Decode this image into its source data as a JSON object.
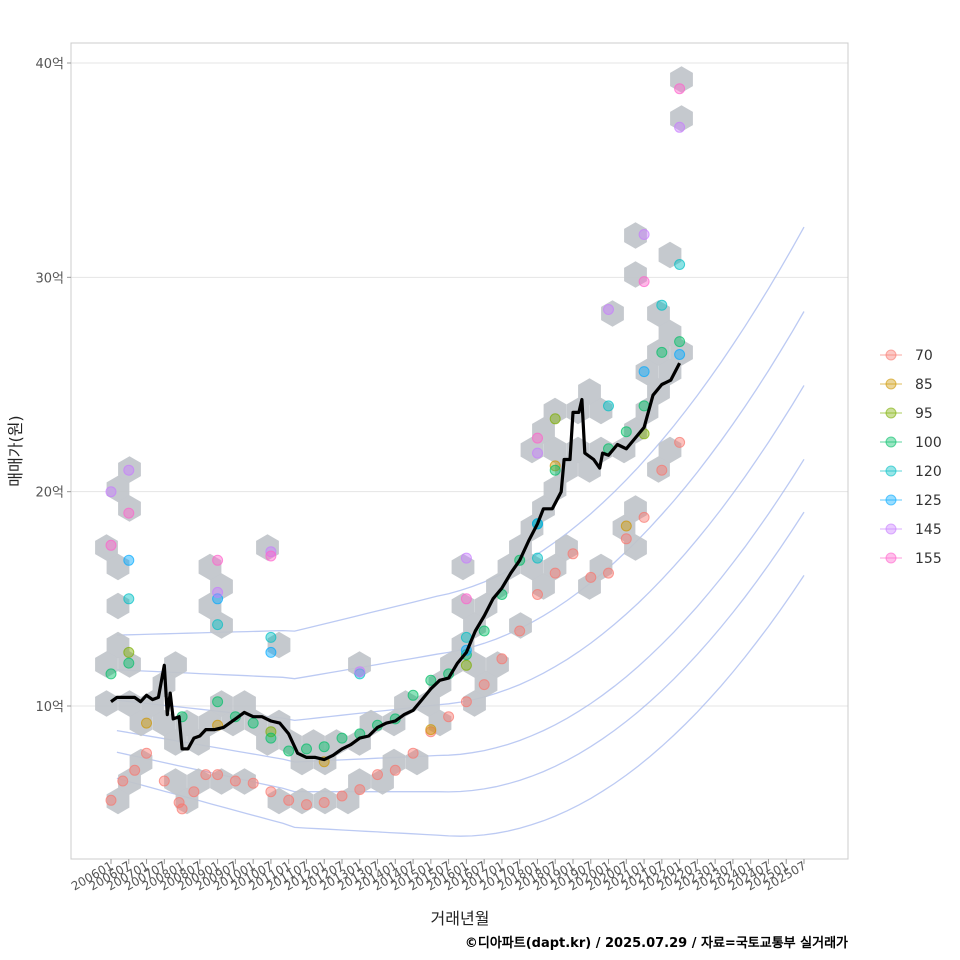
{
  "chart_data": {
    "type": "scatter",
    "title": "",
    "xlabel": "거래년월",
    "ylabel": "매매가(원)",
    "caption": "©디아파트(dapt.kr) / 2025.07.29 / 자료=국토교통부 실거래가",
    "x_ticks": [
      "200601",
      "200607",
      "200701",
      "200707",
      "200801",
      "200807",
      "200901",
      "200907",
      "201001",
      "201007",
      "201101",
      "201107",
      "201201",
      "201207",
      "201301",
      "201307",
      "201401",
      "201407",
      "201501",
      "201507",
      "201601",
      "201607",
      "201701",
      "201707",
      "201801",
      "201807",
      "201901",
      "201907",
      "202001",
      "202007",
      "202101",
      "202107",
      "202201",
      "202207",
      "202301",
      "202307",
      "202401",
      "202407",
      "202501",
      "202507"
    ],
    "y_ticks": [
      {
        "value": 10,
        "label": "10억"
      },
      {
        "value": 20,
        "label": "20억"
      },
      {
        "value": 30,
        "label": "30억"
      },
      {
        "value": 40,
        "label": "40억"
      }
    ],
    "xlim_months": [
      0,
      240
    ],
    "ylim": [
      3,
      41.5
    ],
    "grid": true,
    "legend_position": "right",
    "legend": [
      {
        "label": "70",
        "color": "#F8766D"
      },
      {
        "label": "85",
        "color": "#CD9600"
      },
      {
        "label": "95",
        "color": "#7CAE00"
      },
      {
        "label": "100",
        "color": "#00BE67"
      },
      {
        "label": "120",
        "color": "#00BFC4"
      },
      {
        "label": "125",
        "color": "#00A9FF"
      },
      {
        "label": "145",
        "color": "#C77CFF"
      },
      {
        "label": "155",
        "color": "#FF61CC"
      }
    ],
    "median_line": {
      "color": "#000000",
      "points": [
        [
          "200601",
          10.2
        ],
        [
          "200603",
          10.4
        ],
        [
          "200609",
          10.4
        ],
        [
          "200611",
          10.2
        ],
        [
          "200701",
          10.5
        ],
        [
          "200703",
          10.3
        ],
        [
          "200705",
          10.4
        ],
        [
          "200707",
          11.9
        ],
        [
          "200708",
          9.6
        ],
        [
          "200709",
          10.6
        ],
        [
          "200710",
          9.4
        ],
        [
          "200712",
          9.5
        ],
        [
          "200801",
          8.0
        ],
        [
          "200803",
          8.0
        ],
        [
          "200805",
          8.5
        ],
        [
          "200807",
          8.6
        ],
        [
          "200809",
          8.9
        ],
        [
          "200812",
          8.9
        ],
        [
          "200903",
          9.0
        ],
        [
          "200907",
          9.4
        ],
        [
          "200910",
          9.7
        ],
        [
          "201001",
          9.5
        ],
        [
          "201004",
          9.5
        ],
        [
          "201007",
          9.3
        ],
        [
          "201010",
          9.2
        ],
        [
          "201101",
          8.7
        ],
        [
          "201104",
          7.8
        ],
        [
          "201107",
          7.6
        ],
        [
          "201110",
          7.6
        ],
        [
          "201201",
          7.5
        ],
        [
          "201204",
          7.7
        ],
        [
          "201207",
          8.0
        ],
        [
          "201210",
          8.2
        ],
        [
          "201301",
          8.5
        ],
        [
          "201304",
          8.6
        ],
        [
          "201307",
          9.0
        ],
        [
          "201310",
          9.2
        ],
        [
          "201401",
          9.3
        ],
        [
          "201404",
          9.6
        ],
        [
          "201407",
          9.8
        ],
        [
          "201410",
          10.3
        ],
        [
          "201501",
          10.8
        ],
        [
          "201504",
          11.2
        ],
        [
          "201507",
          11.3
        ],
        [
          "201510",
          12.0
        ],
        [
          "201601",
          12.5
        ],
        [
          "201604",
          13.5
        ],
        [
          "201607",
          14.2
        ],
        [
          "201610",
          15.0
        ],
        [
          "201701",
          15.5
        ],
        [
          "201704",
          16.2
        ],
        [
          "201707",
          16.8
        ],
        [
          "201710",
          17.7
        ],
        [
          "201801",
          18.5
        ],
        [
          "201803",
          19.2
        ],
        [
          "201806",
          19.2
        ],
        [
          "201809",
          20.0
        ],
        [
          "201810",
          21.5
        ],
        [
          "201812",
          21.5
        ],
        [
          "201901",
          23.7
        ],
        [
          "201903",
          23.7
        ],
        [
          "201904",
          24.3
        ],
        [
          "201905",
          21.8
        ],
        [
          "201908",
          21.5
        ],
        [
          "201910",
          21.1
        ],
        [
          "201911",
          21.8
        ],
        [
          "202001",
          21.7
        ],
        [
          "202004",
          22.2
        ],
        [
          "202007",
          22.0
        ],
        [
          "202010",
          22.5
        ],
        [
          "202101",
          23.0
        ],
        [
          "202104",
          24.5
        ],
        [
          "202107",
          25.0
        ],
        [
          "202110",
          25.2
        ],
        [
          "202201",
          26.0
        ]
      ]
    },
    "series": [
      {
        "name": "70",
        "color": "#F8766D",
        "points": [
          [
            "200601",
            5.6
          ],
          [
            "200605",
            6.5
          ],
          [
            "200609",
            7.0
          ],
          [
            "200701",
            7.8
          ],
          [
            "200707",
            6.5
          ],
          [
            "200712",
            5.5
          ],
          [
            "200801",
            5.2
          ],
          [
            "200805",
            6.0
          ],
          [
            "200809",
            6.8
          ],
          [
            "200901",
            6.8
          ],
          [
            "200907",
            6.5
          ],
          [
            "201001",
            6.4
          ],
          [
            "201007",
            6.0
          ],
          [
            "201101",
            5.6
          ],
          [
            "201107",
            5.4
          ],
          [
            "201201",
            5.5
          ],
          [
            "201207",
            5.8
          ],
          [
            "201301",
            6.1
          ],
          [
            "201307",
            6.8
          ],
          [
            "201401",
            7.0
          ],
          [
            "201407",
            7.8
          ],
          [
            "201501",
            8.8
          ],
          [
            "201507",
            9.5
          ],
          [
            "201601",
            10.2
          ],
          [
            "201607",
            11.0
          ],
          [
            "201701",
            12.2
          ],
          [
            "201707",
            13.5
          ],
          [
            "201801",
            15.2
          ],
          [
            "201807",
            16.2
          ],
          [
            "201901",
            17.1
          ],
          [
            "201907",
            16.0
          ],
          [
            "202001",
            16.2
          ],
          [
            "202007",
            17.8
          ],
          [
            "202101",
            18.8
          ],
          [
            "202107",
            21.0
          ],
          [
            "202201",
            22.3
          ]
        ]
      },
      {
        "name": "85",
        "color": "#CD9600",
        "points": [
          [
            "200701",
            9.2
          ],
          [
            "200901",
            9.1
          ],
          [
            "201201",
            7.4
          ],
          [
            "201501",
            8.9
          ],
          [
            "201807",
            21.2
          ],
          [
            "202007",
            18.4
          ]
        ]
      },
      {
        "name": "95",
        "color": "#7CAE00",
        "points": [
          [
            "200607",
            12.5
          ],
          [
            "201007",
            8.8
          ],
          [
            "201601",
            11.9
          ],
          [
            "201807",
            23.4
          ],
          [
            "202101",
            22.7
          ]
        ]
      },
      {
        "name": "100",
        "color": "#00BE67",
        "points": [
          [
            "200601",
            11.5
          ],
          [
            "200607",
            12.0
          ],
          [
            "200801",
            9.5
          ],
          [
            "200901",
            10.2
          ],
          [
            "200907",
            9.5
          ],
          [
            "201001",
            9.2
          ],
          [
            "201007",
            8.5
          ],
          [
            "201101",
            7.9
          ],
          [
            "201107",
            8.0
          ],
          [
            "201201",
            8.1
          ],
          [
            "201207",
            8.5
          ],
          [
            "201301",
            8.7
          ],
          [
            "201307",
            9.1
          ],
          [
            "201401",
            9.4
          ],
          [
            "201407",
            10.5
          ],
          [
            "201501",
            11.2
          ],
          [
            "201507",
            11.5
          ],
          [
            "201601",
            12.4
          ],
          [
            "201607",
            13.5
          ],
          [
            "201701",
            15.2
          ],
          [
            "201707",
            16.8
          ],
          [
            "201801",
            18.5
          ],
          [
            "201807",
            21.0
          ],
          [
            "202001",
            22.0
          ],
          [
            "202007",
            22.8
          ],
          [
            "202101",
            24.0
          ],
          [
            "202107",
            26.5
          ],
          [
            "202201",
            27.0
          ]
        ]
      },
      {
        "name": "120",
        "color": "#00BFC4",
        "points": [
          [
            "200607",
            15.0
          ],
          [
            "200901",
            13.8
          ],
          [
            "201007",
            13.2
          ],
          [
            "201301",
            11.5
          ],
          [
            "201601",
            13.2
          ],
          [
            "201801",
            16.9
          ],
          [
            "202001",
            24.0
          ],
          [
            "202107",
            28.7
          ],
          [
            "202201",
            30.6
          ]
        ]
      },
      {
        "name": "125",
        "color": "#00A9FF",
        "points": [
          [
            "200607",
            16.8
          ],
          [
            "200901",
            15.0
          ],
          [
            "201007",
            12.5
          ],
          [
            "201601",
            12.6
          ],
          [
            "201801",
            18.5
          ],
          [
            "202101",
            25.6
          ],
          [
            "202201",
            26.4
          ]
        ]
      },
      {
        "name": "145",
        "color": "#C77CFF",
        "points": [
          [
            "200601",
            20.0
          ],
          [
            "200607",
            21.0
          ],
          [
            "200901",
            15.3
          ],
          [
            "201007",
            17.2
          ],
          [
            "201301",
            11.6
          ],
          [
            "201601",
            16.9
          ],
          [
            "201801",
            21.8
          ],
          [
            "202001",
            28.5
          ],
          [
            "202101",
            32.0
          ],
          [
            "202201",
            37.0
          ]
        ]
      },
      {
        "name": "155",
        "color": "#FF61CC",
        "points": [
          [
            "200601",
            17.5
          ],
          [
            "200607",
            19.0
          ],
          [
            "200901",
            16.8
          ],
          [
            "201007",
            17.0
          ],
          [
            "201601",
            15.0
          ],
          [
            "201801",
            22.5
          ],
          [
            "202101",
            29.8
          ],
          [
            "202201",
            38.8
          ]
        ]
      }
    ]
  }
}
